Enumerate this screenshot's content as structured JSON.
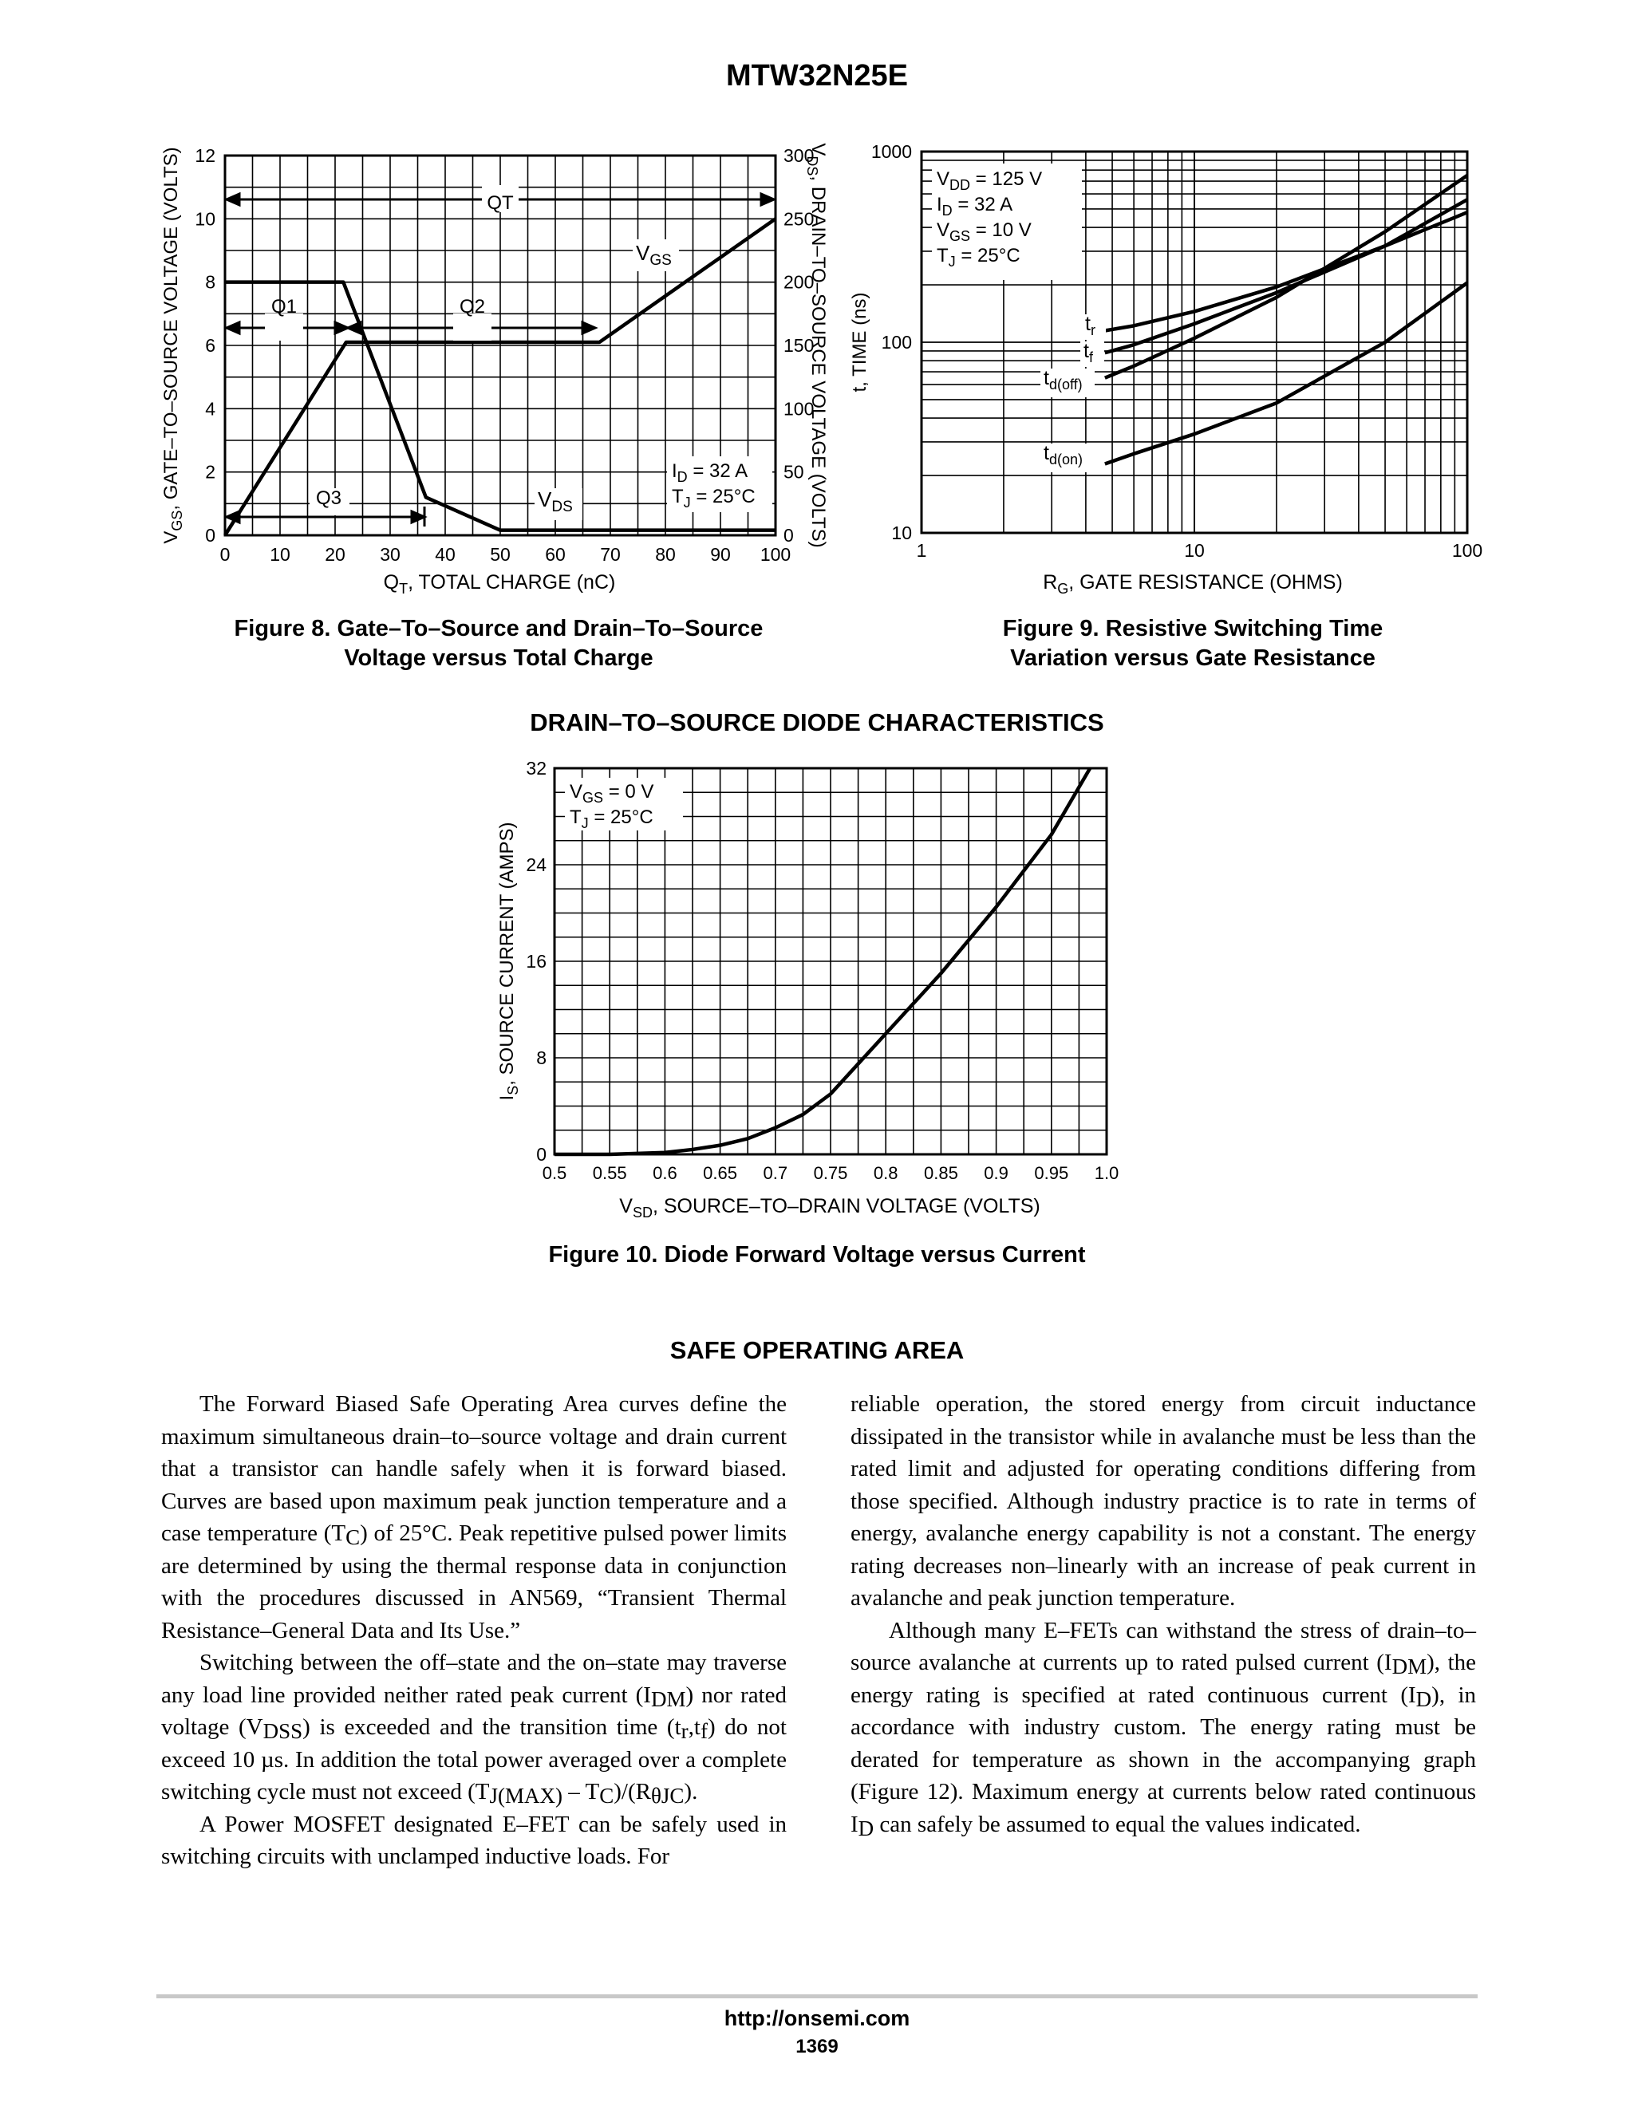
{
  "header": {
    "part_number": "MTW32N25E"
  },
  "figure8": {
    "caption_line1": "Figure 8. Gate–To–Source and Drain–To–Source",
    "caption_line2": "Voltage versus Total Charge"
  },
  "figure9": {
    "caption_line1": "Figure 9. Resistive Switching Time",
    "caption_line2": "Variation versus Gate Resistance"
  },
  "diode_section": {
    "heading": "DRAIN–TO–SOURCE DIODE CHARACTERISTICS"
  },
  "figure10": {
    "caption": "Figure 10. Diode Forward Voltage versus Current"
  },
  "chart_data": [
    {
      "type": "line",
      "xlabel": "QT, TOTAL CHARGE (nC)",
      "ylabel": "VGS, GATE–TO–SOURCE VOLTAGE (VOLTS)",
      "y2label": "VDS, DRAIN–TO–SOURCE VOLTAGE (VOLTS)",
      "xlim": [
        0,
        100
      ],
      "ylim": [
        0,
        12
      ],
      "y2lim": [
        0,
        300
      ],
      "x_ticks": [
        "0",
        "10",
        "20",
        "30",
        "40",
        "50",
        "60",
        "70",
        "80",
        "90",
        "100"
      ],
      "y_ticks": [
        "0",
        "2",
        "4",
        "6",
        "8",
        "10",
        "12"
      ],
      "y2_ticks": [
        "0",
        "50",
        "100",
        "150",
        "200",
        "250",
        "300"
      ],
      "grid": true,
      "annotations": [
        "QT",
        "Q1",
        "Q2",
        "Q3",
        "VGS",
        "VDS",
        "ID = 32 A",
        "TJ = 25°C"
      ],
      "series": [
        {
          "name": "VGS",
          "axis": "left",
          "x": [
            0,
            22,
            68,
            100
          ],
          "y": [
            0,
            6.1,
            6.1,
            10
          ]
        },
        {
          "name": "VDS",
          "axis": "right",
          "x": [
            0,
            21.5,
            36.5,
            50,
            100
          ],
          "y": [
            200,
            200,
            30,
            4,
            4
          ]
        }
      ]
    },
    {
      "type": "line",
      "xlabel": "RG, GATE RESISTANCE (OHMS)",
      "ylabel": "t, TIME (ns)",
      "x_scale": "log",
      "y_scale": "log",
      "xlim": [
        1,
        100
      ],
      "ylim": [
        10,
        1000
      ],
      "x_ticks": [
        "1",
        "10",
        "100"
      ],
      "y_ticks": [
        "10",
        "100",
        "1000"
      ],
      "grid": true,
      "annotations": [
        "VDD = 125 V",
        "ID =  32 A",
        "VGS = 10 V",
        "TJ = 25°C"
      ],
      "series": [
        {
          "name": "tr",
          "x": [
            4.7,
            6,
            10,
            20,
            50,
            100
          ],
          "y": [
            115,
            122,
            145,
            195,
            320,
            560
          ]
        },
        {
          "name": "tf",
          "x": [
            4.7,
            6,
            10,
            20,
            50,
            100
          ],
          "y": [
            88,
            97,
            125,
            182,
            320,
            480
          ]
        },
        {
          "name": "td(off)",
          "x": [
            4.7,
            6,
            10,
            20,
            50,
            100
          ],
          "y": [
            65,
            75,
            105,
            172,
            380,
            750
          ]
        },
        {
          "name": "td(on)",
          "x": [
            4.7,
            6,
            10,
            20,
            50,
            100
          ],
          "y": [
            23,
            26,
            33,
            48,
            100,
            205
          ]
        }
      ]
    },
    {
      "type": "line",
      "xlabel": "VSD, SOURCE–TO–DRAIN VOLTAGE (VOLTS)",
      "ylabel": "IS, SOURCE CURRENT (AMPS)",
      "xlim": [
        0.5,
        1.0
      ],
      "ylim": [
        0,
        32
      ],
      "x_ticks": [
        "0.5",
        "0.55",
        "0.6",
        "0.65",
        "0.7",
        "0.75",
        "0.8",
        "0.85",
        "0.9",
        "0.95",
        "1.0"
      ],
      "y_ticks": [
        "0",
        "8",
        "16",
        "24",
        "32"
      ],
      "grid": true,
      "annotations": [
        "VGS = 0 V",
        "TJ = 25°C"
      ],
      "series": [
        {
          "name": "IS",
          "x": [
            0.5,
            0.55,
            0.6,
            0.625,
            0.65,
            0.675,
            0.7,
            0.725,
            0.75,
            0.775,
            0.8,
            0.85,
            0.9,
            0.95,
            0.985
          ],
          "y": [
            0,
            0,
            0.15,
            0.4,
            0.75,
            1.3,
            2.2,
            3.3,
            5,
            7.5,
            10,
            15,
            20.5,
            26.5,
            32
          ]
        }
      ]
    }
  ],
  "soa": {
    "heading": "SAFE OPERATING AREA",
    "left_p1": "The Forward Biased Safe Operating Area curves define the maximum simultaneous drain–to–source voltage and drain current that a transistor can handle safely when it is forward biased. Curves are based upon maximum peak junction temperature and a case temperature (T",
    "left_p1_sub": "C",
    "left_p1_b": ") of 25°C. Peak repetitive pulsed power limits are determined by using the thermal response data in conjunction with the procedures discussed in AN569, “Transient Thermal Resistance–General Data and Its Use.”",
    "left_p2_a": "Switching between the off–state and the on–state may traverse any load line provided neither rated peak current (I",
    "left_p2_sub1": "DM",
    "left_p2_b": ") nor rated voltage (V",
    "left_p2_sub2": "DSS",
    "left_p2_c": ") is exceeded and the transition time (t",
    "left_p2_sub3": "r",
    "left_p2_d": ",t",
    "left_p2_sub4": "f",
    "left_p2_e": ") do not exceed 10 µs. In addition the total power averaged over a complete switching cycle must not exceed (T",
    "left_p2_sub5": "J(MAX)",
    "left_p2_f": " – T",
    "left_p2_sub6": "C",
    "left_p2_g": ")/(R",
    "left_p2_sub7": "θJC",
    "left_p2_h": ").",
    "left_p3": "A Power MOSFET designated E–FET can be safely used in switching circuits with unclamped inductive loads. For",
    "right_p1": "reliable operation, the stored energy from circuit inductance dissipated in the transistor while in avalanche must be less than the rated limit and adjusted for operating conditions differing from those specified. Although industry practice is to rate in terms of energy, avalanche energy capability is not a constant. The energy rating decreases non–linearly with an increase of peak current in avalanche and peak junction temperature.",
    "right_p2_a": "Although many E–FETs can withstand the stress of drain–to–source avalanche at currents up to rated pulsed current (I",
    "right_p2_sub1": "DM",
    "right_p2_b": "), the energy rating is specified at rated continuous current (I",
    "right_p2_sub2": "D",
    "right_p2_c": "), in accordance with industry custom. The energy rating must be derated for temperature as shown in the accompanying graph (Figure 12). Maximum energy at currents below rated continuous I",
    "right_p2_sub3": "D",
    "right_p2_d": " can safely be assumed to equal the values indicated."
  },
  "footer": {
    "url": "http://onsemi.com",
    "page_number": "1369"
  }
}
